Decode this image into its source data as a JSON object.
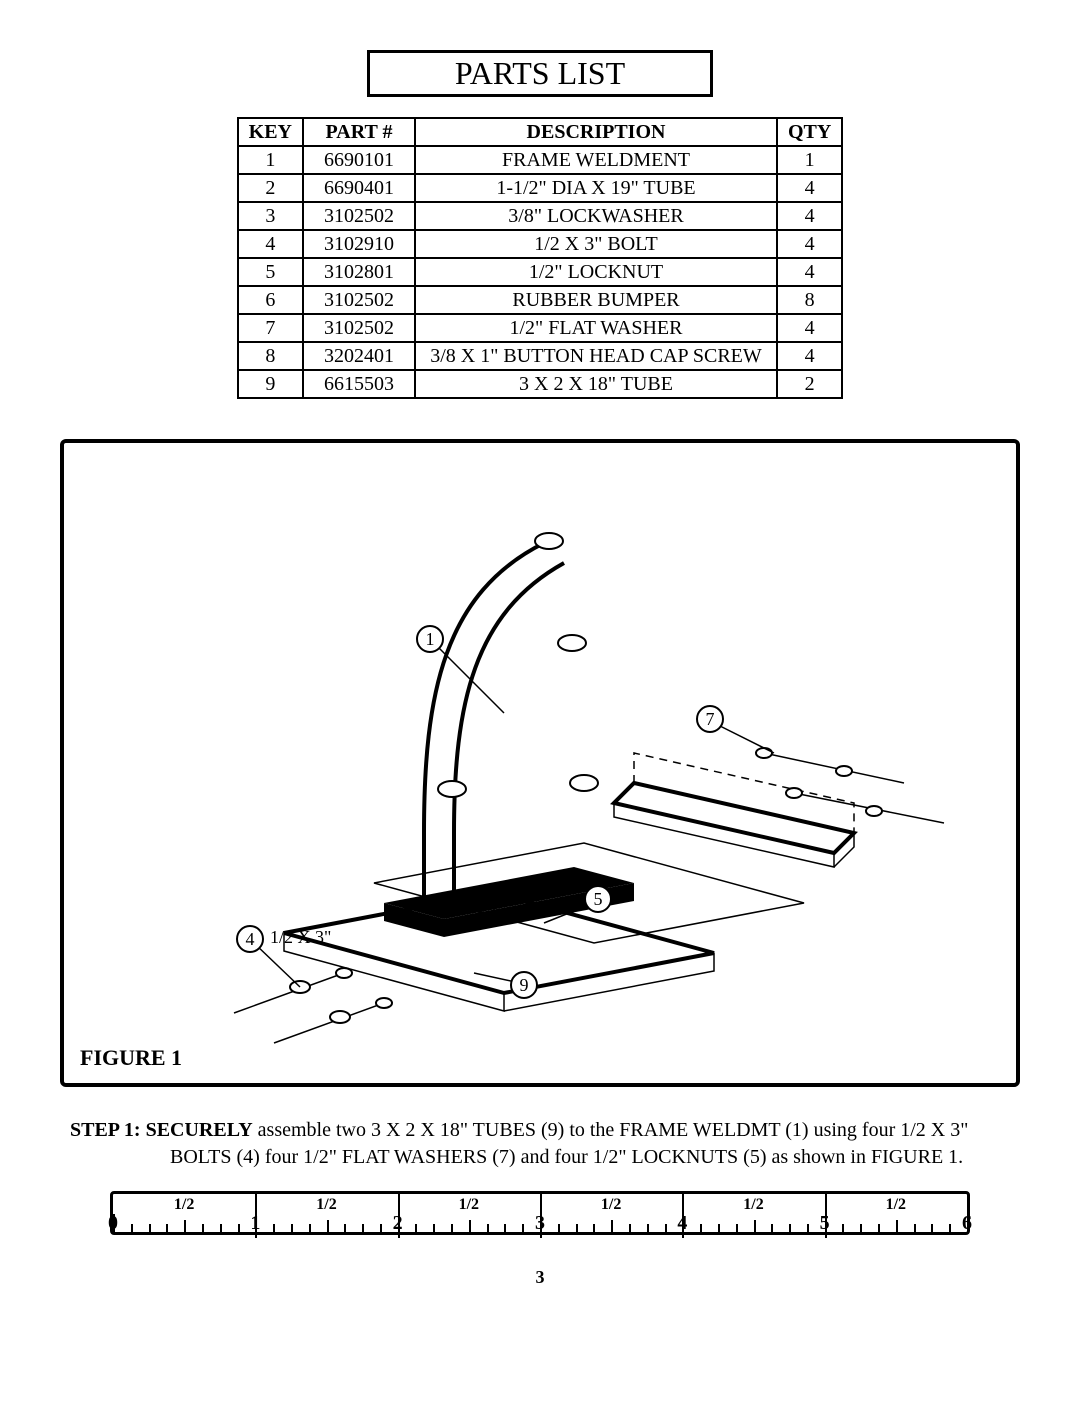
{
  "title": "PARTS LIST",
  "table": {
    "headers": {
      "key": "KEY",
      "part": "PART #",
      "desc": "DESCRIPTION",
      "qty": "QTY"
    },
    "rows": [
      {
        "key": "1",
        "part": "6690101",
        "desc": "FRAME WELDMENT",
        "qty": "1"
      },
      {
        "key": "2",
        "part": "6690401",
        "desc": "1-1/2\" DIA X 19\" TUBE",
        "qty": "4"
      },
      {
        "key": "3",
        "part": "3102502",
        "desc": "3/8\" LOCKWASHER",
        "qty": "4"
      },
      {
        "key": "4",
        "part": "3102910",
        "desc": "1/2 X 3\" BOLT",
        "qty": "4"
      },
      {
        "key": "5",
        "part": "3102801",
        "desc": "1/2\" LOCKNUT",
        "qty": "4"
      },
      {
        "key": "6",
        "part": "3102502",
        "desc": "RUBBER BUMPER",
        "qty": "8"
      },
      {
        "key": "7",
        "part": "3102502",
        "desc": "1/2\" FLAT WASHER",
        "qty": "4"
      },
      {
        "key": "8",
        "part": "3202401",
        "desc": "3/8 X 1\" BUTTON HEAD CAP SCREW",
        "qty": "4"
      },
      {
        "key": "9",
        "part": "6615503",
        "desc": "3 X 2 X 18\" TUBE",
        "qty": "2"
      }
    ]
  },
  "figure": {
    "label": "FIGURE 1",
    "callouts": {
      "c1": "1",
      "c4": "4",
      "c4_note": "1/2 X 3\"",
      "c5": "5",
      "c7": "7",
      "c9": "9"
    }
  },
  "step": {
    "lead": "STEP 1: SECURELY",
    "line1_rest": " assemble two 3 X 2 X 18\" TUBES (9) to the FRAME WELDMT (1) using four 1/2 X 3\"",
    "line2": "BOLTS (4) four 1/2\" FLAT WASHERS (7) and four 1/2\" LOCKNUTS (5) as shown in FIGURE 1."
  },
  "ruler": {
    "inches": 6,
    "half_label": "1/2",
    "whole_labels": [
      "0",
      "1",
      "2",
      "3",
      "4",
      "5",
      "6"
    ]
  },
  "page_number": "3",
  "colors": {
    "background": "#ffffff",
    "ink": "#000000"
  }
}
